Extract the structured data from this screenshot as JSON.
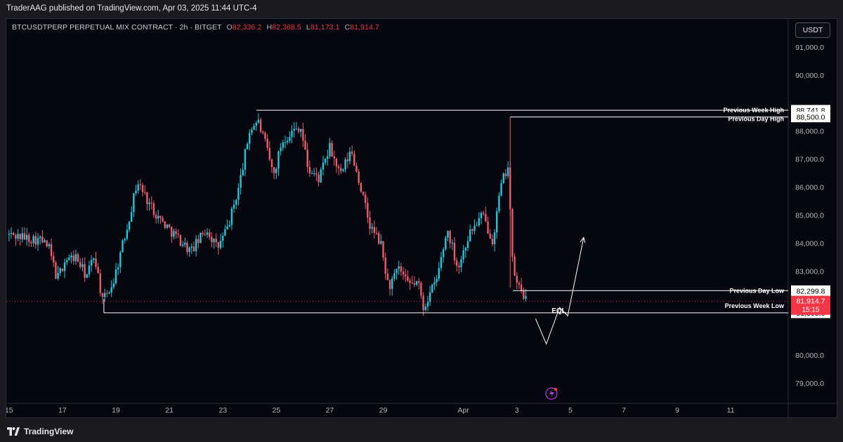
{
  "header": {
    "published": "TraderAAG published on TradingView.com, Apr 03, 2025 11:44 UTC-4"
  },
  "legend": {
    "symbol": "BTCUSDTPERP PERPETUAL MIX CONTRACT · 2h · BITGET",
    "o_label": "O",
    "o_value": "82,336.2",
    "h_label": "H",
    "h_value": "82,368.5",
    "l_label": "L",
    "l_value": "81,173.1",
    "c_label": "C",
    "c_value": "81,914.7"
  },
  "currency_button": "USDT",
  "footer": {
    "brand": "TradingView"
  },
  "colors": {
    "background": "#07080f",
    "up_candle": "#26c6da",
    "down_candle": "#ef5b6b",
    "level_line": "#ffffff",
    "price_label_bg": "#f23645"
  },
  "chart_data": {
    "type": "candlestick",
    "symbol": "BTCUSDTPERP",
    "timeframe": "2h",
    "ylim": [
      78200,
      92000
    ],
    "y_ticks": [
      79000,
      80000,
      83000,
      84000,
      85000,
      86000,
      87000,
      88000,
      90000,
      91000
    ],
    "y_tick_labels": [
      "79,000.0",
      "80,000.0",
      "83,000.0",
      "84,000.0",
      "85,000.0",
      "86,000.0",
      "87,000.0",
      "88,000.0",
      "90,000.0",
      "91,000.0"
    ],
    "x_ticks": [
      {
        "label": "15",
        "day": 15
      },
      {
        "label": "17",
        "day": 17
      },
      {
        "label": "19",
        "day": 19
      },
      {
        "label": "21",
        "day": 21
      },
      {
        "label": "23",
        "day": 23
      },
      {
        "label": "25",
        "day": 25
      },
      {
        "label": "27",
        "day": 27
      },
      {
        "label": "29",
        "day": 29
      },
      {
        "label": "Apr",
        "day": 32
      },
      {
        "label": "3",
        "day": 34
      },
      {
        "label": "5",
        "day": 36
      },
      {
        "label": "7",
        "day": 38
      },
      {
        "label": "9",
        "day": 40
      },
      {
        "label": "11",
        "day": 42
      }
    ],
    "x_range_days": [
      14.9,
      44.15
    ],
    "price_path": [
      [
        15.0,
        84300
      ],
      [
        15.6,
        84200
      ],
      [
        16.2,
        84100
      ],
      [
        16.5,
        83800
      ],
      [
        16.8,
        82700
      ],
      [
        17.1,
        83400
      ],
      [
        17.5,
        83500
      ],
      [
        17.9,
        82800
      ],
      [
        18.2,
        83600
      ],
      [
        18.5,
        81900
      ],
      [
        18.9,
        82600
      ],
      [
        19.4,
        84500
      ],
      [
        19.8,
        86200
      ],
      [
        20.2,
        85500
      ],
      [
        20.6,
        84900
      ],
      [
        21.2,
        84300
      ],
      [
        21.8,
        83700
      ],
      [
        22.4,
        84500
      ],
      [
        22.8,
        83800
      ],
      [
        23.2,
        84600
      ],
      [
        23.6,
        86000
      ],
      [
        24.0,
        88000
      ],
      [
        24.3,
        88400
      ],
      [
        24.6,
        87500
      ],
      [
        24.9,
        86400
      ],
      [
        25.2,
        87600
      ],
      [
        25.5,
        87900
      ],
      [
        25.9,
        88200
      ],
      [
        26.2,
        86600
      ],
      [
        26.6,
        86300
      ],
      [
        27.0,
        87400
      ],
      [
        27.4,
        86400
      ],
      [
        27.8,
        87300
      ],
      [
        28.1,
        86200
      ],
      [
        28.5,
        84600
      ],
      [
        28.9,
        84000
      ],
      [
        29.2,
        82400
      ],
      [
        29.6,
        83100
      ],
      [
        29.9,
        82500
      ],
      [
        30.3,
        82600
      ],
      [
        30.5,
        81700
      ],
      [
        31.0,
        82700
      ],
      [
        31.4,
        84500
      ],
      [
        31.8,
        83100
      ],
      [
        32.2,
        84300
      ],
      [
        32.7,
        85000
      ],
      [
        33.1,
        84100
      ],
      [
        33.4,
        86000
      ],
      [
        33.7,
        86900
      ],
      [
        33.8,
        83500
      ],
      [
        34.0,
        82500
      ],
      [
        34.2,
        82300
      ],
      [
        34.35,
        81900
      ]
    ],
    "current_price": {
      "value": 81914.7,
      "label": "81,914.7",
      "countdown": "15:15"
    },
    "levels": [
      {
        "name": "Previous Week High",
        "value": 88741.8,
        "label": "88,741.8"
      },
      {
        "name": "Previous Day High",
        "value": 88500.0,
        "label": "88,500.0"
      },
      {
        "name": "Previous Day Low",
        "value": 82299.8,
        "label": "82,299.8"
      },
      {
        "name": "Previous Week Low",
        "value": 81508.0,
        "label": "81,508.0"
      }
    ],
    "annotations": [
      {
        "text": "EQL",
        "value": 81600
      }
    ],
    "projection_path": [
      [
        34.7,
        81300
      ],
      [
        35.1,
        80400
      ],
      [
        35.6,
        81700
      ],
      [
        35.9,
        81400
      ],
      [
        36.5,
        84200
      ]
    ]
  }
}
